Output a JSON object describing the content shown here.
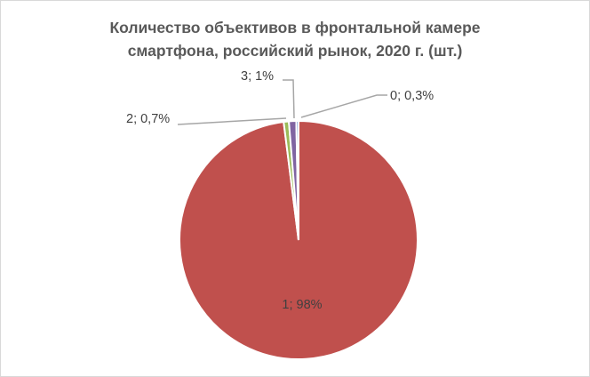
{
  "chart_data": {
    "type": "pie",
    "title_lines": [
      "Количество объективов в фронтальной камере",
      "смартфона, российский рынок, 2020 г. (шт.)"
    ],
    "slices": [
      {
        "category": "0",
        "value": 0.3,
        "label": "0; 0,3%",
        "color": "#4472c4"
      },
      {
        "category": "1",
        "value": 98.0,
        "label": "1; 98%",
        "color": "#c0504d"
      },
      {
        "category": "2",
        "value": 0.7,
        "label": "2; 0,7%",
        "color": "#9bbb59"
      },
      {
        "category": "3",
        "value": 1.0,
        "label": "3; 1%",
        "color": "#8064a2"
      }
    ],
    "legend": "none",
    "leader_line_color": "#a6a6a6"
  }
}
